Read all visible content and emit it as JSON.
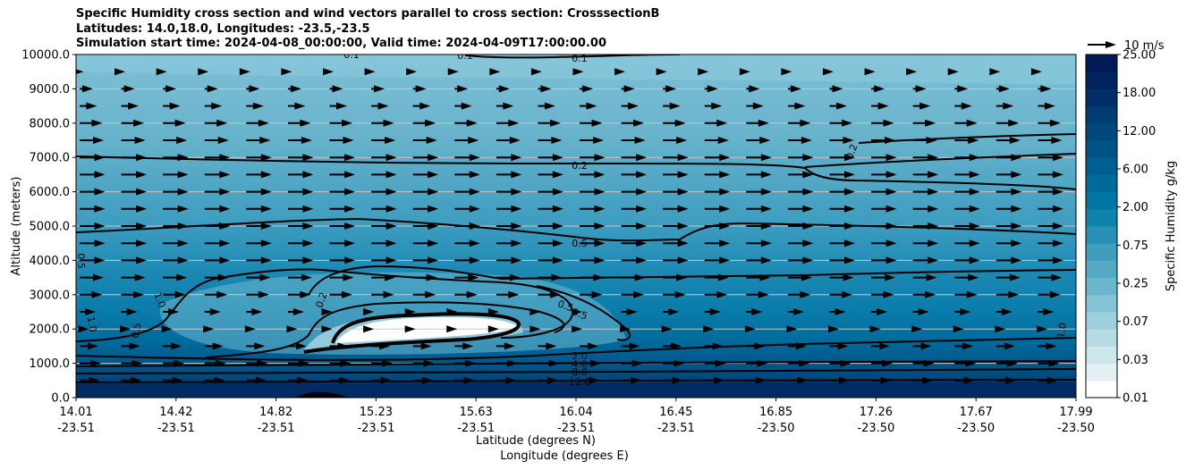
{
  "title": {
    "line1": "Specific Humidity cross section and wind vectors parallel to cross section: CrosssectionB",
    "line2": "Latitudes: 14.0,18.0, Longitudes: -23.5,-23.5",
    "line3": "Simulation start time: 2024-04-08_00:00:00, Valid time: 2024-04-09T17:00:00.00"
  },
  "chart_data": {
    "type": "filled-contour cross section with wind vectors",
    "ylabel": "Altitude (meters)",
    "xlabel_lat": "Latitude (degrees N)",
    "xlabel_lon": "Longitude (degrees E)",
    "ylim": [
      0,
      10000
    ],
    "yticks": [
      "0.0",
      "1000.0",
      "2000.0",
      "3000.0",
      "4000.0",
      "5000.0",
      "6000.0",
      "7000.0",
      "8000.0",
      "9000.0",
      "10000.0"
    ],
    "xticks": [
      {
        "lat": "14.01",
        "lon": "-23.51"
      },
      {
        "lat": "14.42",
        "lon": "-23.51"
      },
      {
        "lat": "14.82",
        "lon": "-23.51"
      },
      {
        "lat": "15.23",
        "lon": "-23.51"
      },
      {
        "lat": "15.63",
        "lon": "-23.51"
      },
      {
        "lat": "16.04",
        "lon": "-23.51"
      },
      {
        "lat": "16.45",
        "lon": "-23.51"
      },
      {
        "lat": "16.85",
        "lon": "-23.50"
      },
      {
        "lat": "17.26",
        "lon": "-23.50"
      },
      {
        "lat": "17.67",
        "lon": "-23.50"
      },
      {
        "lat": "17.99",
        "lon": "-23.50"
      }
    ],
    "colorbar": {
      "label": "Specific Humidity g/kg",
      "ticks": [
        "0.01",
        "0.03",
        "0.07",
        "0.25",
        "0.75",
        "2.00",
        "6.00",
        "12.00",
        "18.00",
        "25.00"
      ],
      "colors": [
        "#ffffff",
        "#e3f1f4",
        "#cde6ec",
        "#b6dbe5",
        "#9ecfdd",
        "#84c2d4",
        "#6cb6cd",
        "#56a9c5",
        "#3f9dbd",
        "#2890b5",
        "#0f83ac",
        "#0076a4",
        "#006a9b",
        "#005e91",
        "#005386",
        "#00487b",
        "#003d71",
        "#003067",
        "#00255e",
        "#001a55"
      ]
    },
    "quiver_key": {
      "label": "10 m/s",
      "speed": 10
    },
    "contour_labels": [
      "0.1",
      "0.1",
      "0.1",
      "0.2",
      "0.2",
      "0.2",
      "0.5",
      "0.5",
      "0.5",
      "0.5",
      "0.5",
      "1.0",
      "1.0",
      "1.0",
      "2.0",
      "4.0",
      "8.0",
      "12.0"
    ],
    "wind_rows": [
      {
        "altitude": 9500,
        "scale": 0.15
      },
      {
        "altitude": 9000,
        "scale": 0.5
      },
      {
        "altitude": 8500,
        "scale": 0.65
      },
      {
        "altitude": 8000,
        "scale": 0.85
      },
      {
        "altitude": 7500,
        "scale": 0.9
      },
      {
        "altitude": 7000,
        "scale": 0.95
      },
      {
        "altitude": 6500,
        "scale": 0.95
      },
      {
        "altitude": 6000,
        "scale": 0.95
      },
      {
        "altitude": 5500,
        "scale": 0.95
      },
      {
        "altitude": 5000,
        "scale": 0.95
      },
      {
        "altitude": 4500,
        "scale": 0.95
      },
      {
        "altitude": 4000,
        "scale": 0.95
      },
      {
        "altitude": 3500,
        "scale": 0.9
      },
      {
        "altitude": 3000,
        "scale": 0.85
      },
      {
        "altitude": 2500,
        "scale": 0.6
      },
      {
        "altitude": 2000,
        "scale": 0.35
      },
      {
        "altitude": 1500,
        "scale": 0.7
      },
      {
        "altitude": 1000,
        "scale": 0.8
      },
      {
        "altitude": 500,
        "scale": 0.75
      }
    ]
  }
}
